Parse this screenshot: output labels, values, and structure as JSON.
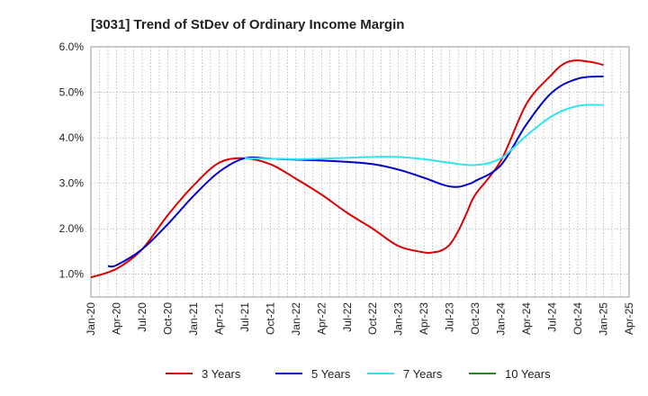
{
  "chart_data": {
    "type": "line",
    "title": "[3031]  Trend of StDev of Ordinary Income Margin",
    "xlabel": "",
    "ylabel": "",
    "x_ticks": [
      "Jan-20",
      "Apr-20",
      "Jul-20",
      "Oct-20",
      "Jan-21",
      "Apr-21",
      "Jul-21",
      "Oct-21",
      "Jan-22",
      "Apr-22",
      "Jul-22",
      "Oct-22",
      "Jan-23",
      "Apr-23",
      "Jul-23",
      "Oct-23",
      "Jan-24",
      "Apr-24",
      "Jul-24",
      "Oct-24",
      "Jan-25",
      "Apr-25"
    ],
    "y_ticks": [
      "1.0%",
      "2.0%",
      "3.0%",
      "4.0%",
      "5.0%",
      "6.0%"
    ],
    "ylim": [
      0.5,
      6.0
    ],
    "grid": true,
    "legend_position": "bottom",
    "series": [
      {
        "name": "3 Years",
        "color": "#dd0000",
        "x": [
          "2020-01",
          "2020-04",
          "2020-07",
          "2020-10",
          "2021-01",
          "2021-04",
          "2021-07",
          "2021-10",
          "2022-01",
          "2022-04",
          "2022-07",
          "2022-10",
          "2023-01",
          "2023-04",
          "2023-05",
          "2023-06",
          "2023-07",
          "2023-08",
          "2023-09",
          "2023-10",
          "2024-01",
          "2024-04",
          "2024-07",
          "2024-08",
          "2024-09",
          "2024-10",
          "2024-11",
          "2024-12",
          "2025-01"
        ],
        "values": [
          0.93,
          1.12,
          1.55,
          2.3,
          2.95,
          3.45,
          3.55,
          3.42,
          3.1,
          2.75,
          2.35,
          2.0,
          1.62,
          1.48,
          1.48,
          1.52,
          1.65,
          1.95,
          2.35,
          2.75,
          3.5,
          4.75,
          5.4,
          5.58,
          5.68,
          5.7,
          5.68,
          5.65,
          5.6
        ]
      },
      {
        "name": "5 Years",
        "color": "#0000cc",
        "x": [
          "2020-03",
          "2020-04",
          "2020-07",
          "2020-10",
          "2021-01",
          "2021-04",
          "2021-07",
          "2021-10",
          "2022-01",
          "2022-04",
          "2022-07",
          "2022-10",
          "2023-01",
          "2023-04",
          "2023-05",
          "2023-06",
          "2023-07",
          "2023-08",
          "2023-09",
          "2023-10",
          "2024-01",
          "2024-04",
          "2024-07",
          "2024-10",
          "2025-01"
        ],
        "values": [
          1.18,
          1.2,
          1.55,
          2.1,
          2.72,
          3.25,
          3.55,
          3.54,
          3.52,
          3.5,
          3.47,
          3.42,
          3.3,
          3.12,
          3.05,
          2.98,
          2.93,
          2.92,
          2.97,
          3.05,
          3.4,
          4.3,
          5.0,
          5.3,
          5.35
        ]
      },
      {
        "name": "7 Years",
        "color": "#33e4ee",
        "x": [
          "2021-07",
          "2021-10",
          "2022-01",
          "2022-04",
          "2022-07",
          "2022-10",
          "2023-01",
          "2023-04",
          "2023-07",
          "2023-10",
          "2024-01",
          "2024-04",
          "2024-07",
          "2024-10",
          "2025-01"
        ],
        "values": [
          3.55,
          3.54,
          3.53,
          3.54,
          3.56,
          3.58,
          3.58,
          3.53,
          3.45,
          3.4,
          3.55,
          4.05,
          4.48,
          4.7,
          4.72
        ]
      },
      {
        "name": "10 Years",
        "color": "#228822",
        "x": [],
        "values": []
      }
    ]
  }
}
